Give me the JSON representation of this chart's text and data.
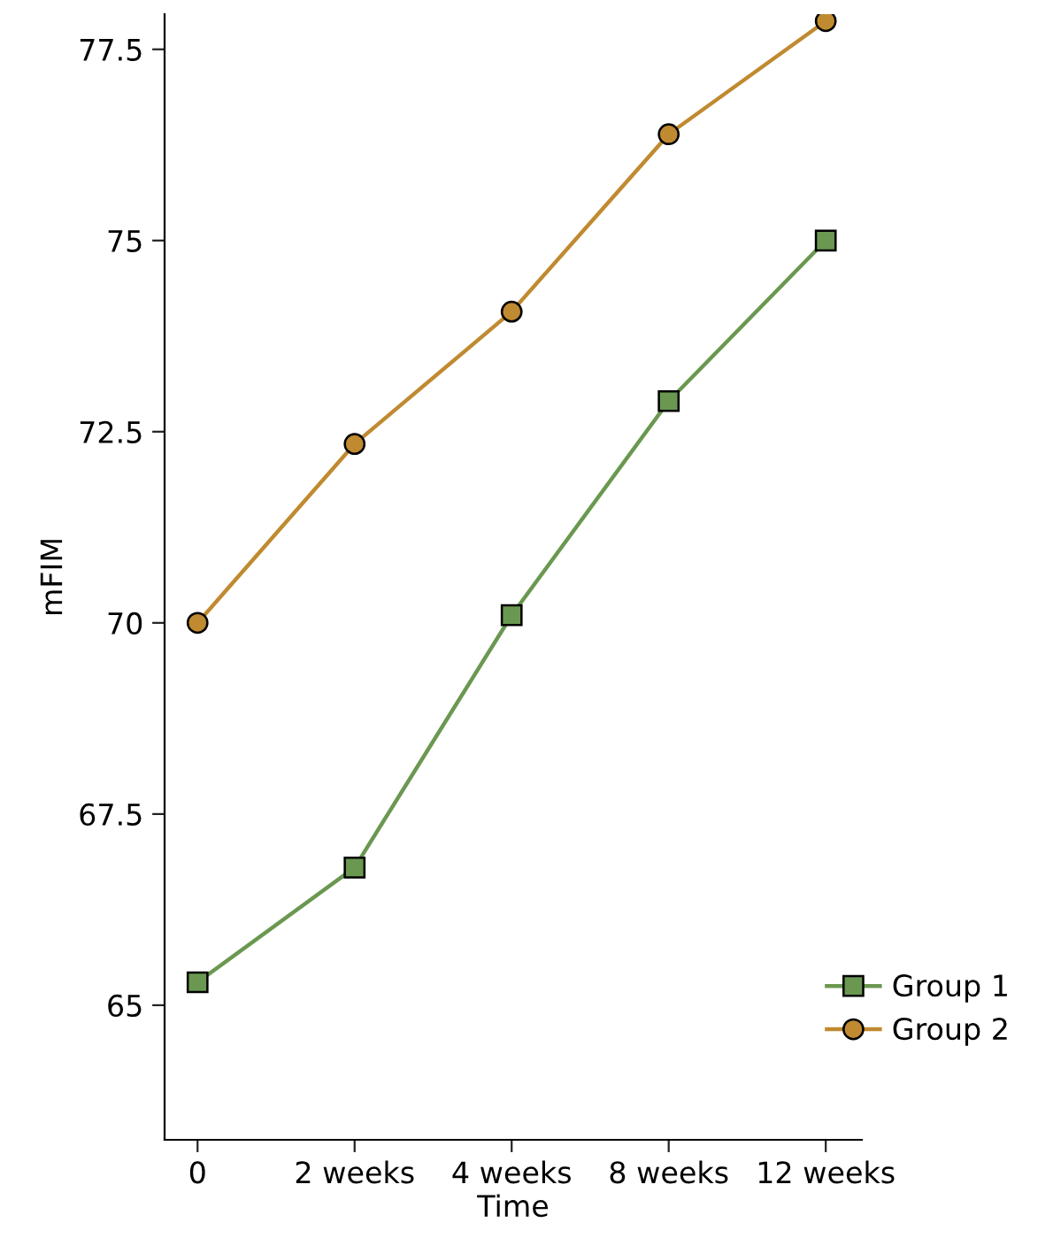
{
  "chart_data": {
    "type": "line",
    "xlabel": "Time",
    "ylabel": "mFIM",
    "categories": [
      "0",
      "2 weeks",
      "4 weeks",
      "8 weeks",
      "12 weeks"
    ],
    "ylim": [
      63.24,
      77.96
    ],
    "yticks": [
      65,
      67.5,
      70,
      72.5,
      75,
      77.5
    ],
    "grid": false,
    "legend": "bottom right",
    "series": [
      {
        "name": "Group 1",
        "color": "#6a9850",
        "marker": "square",
        "values": [
          65.3,
          66.8,
          70.1,
          72.9,
          75.0
        ]
      },
      {
        "name": "Group 2",
        "color": "#c08a30",
        "marker": "circle",
        "values": [
          70.0,
          72.34,
          74.07,
          76.39,
          77.87
        ]
      }
    ]
  }
}
